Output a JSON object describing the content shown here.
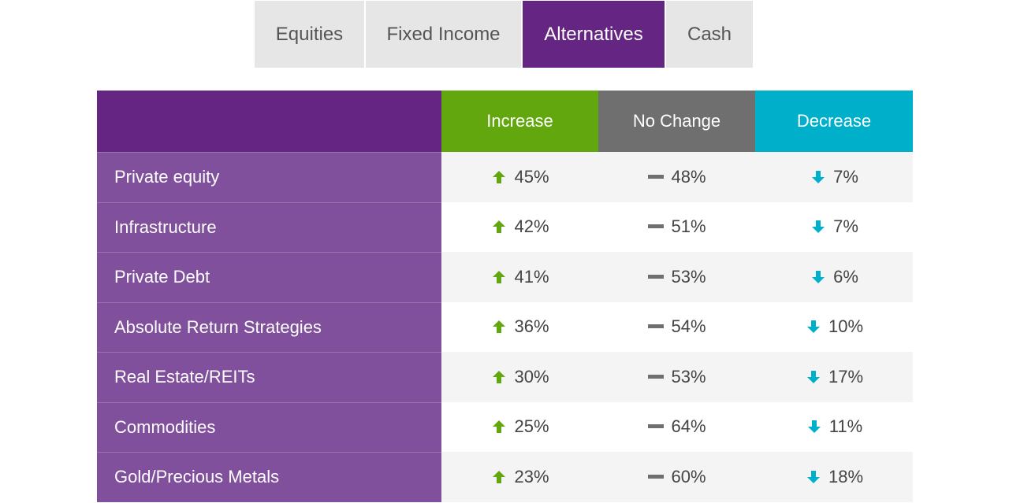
{
  "tabs": [
    {
      "label": "Equities"
    },
    {
      "label": "Fixed Income"
    },
    {
      "label": "Alternatives",
      "active": true
    },
    {
      "label": "Cash"
    }
  ],
  "table": {
    "headers": {
      "increase": "Increase",
      "no_change": "No Change",
      "decrease": "Decrease"
    },
    "rows": [
      {
        "label": "Private equity",
        "increase": "45%",
        "no_change": "48%",
        "decrease": "7%"
      },
      {
        "label": "Infrastructure",
        "increase": "42%",
        "no_change": "51%",
        "decrease": "7%"
      },
      {
        "label": "Private Debt",
        "increase": "41%",
        "no_change": "53%",
        "decrease": "6%"
      },
      {
        "label": "Absolute Return Strategies",
        "increase": "36%",
        "no_change": "54%",
        "decrease": "10%"
      },
      {
        "label": "Real Estate/REITs",
        "increase": "30%",
        "no_change": "53%",
        "decrease": "17%"
      },
      {
        "label": "Commodities",
        "increase": "25%",
        "no_change": "64%",
        "decrease": "11%"
      },
      {
        "label": "Gold/Precious Metals",
        "increase": "23%",
        "no_change": "60%",
        "decrease": "18%"
      }
    ]
  },
  "colors": {
    "brand_purple": "#652582",
    "row_label_purple": "#80509c",
    "increase_green": "#63a70f",
    "no_change_gray": "#6f6f6f",
    "decrease_teal": "#00afc9"
  },
  "icons": {
    "increase": "arrow-up-icon",
    "no_change": "dash-icon",
    "decrease": "arrow-down-icon"
  }
}
